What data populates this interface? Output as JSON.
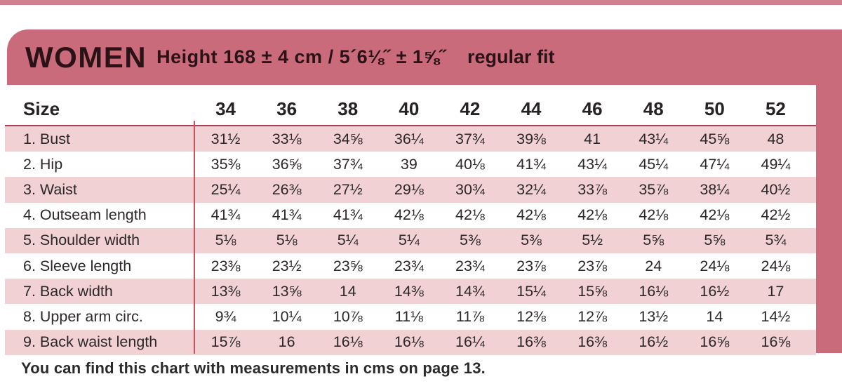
{
  "header": {
    "title": "WOMEN",
    "subtitle": "Height 168 ±  4 cm /  5´6⅛˝ ± 1⅝˝",
    "fit": "regular fit"
  },
  "table": {
    "size_label": "Size",
    "sizes": [
      "34",
      "36",
      "38",
      "40",
      "42",
      "44",
      "46",
      "48",
      "50",
      "52"
    ],
    "rows": [
      {
        "label": "1. Bust",
        "values": [
          "31½",
          "33⅛",
          "34⅝",
          "36¼",
          "37¾",
          "39⅜",
          "41",
          "43¼",
          "45⅝",
          "48"
        ]
      },
      {
        "label": "2. Hip",
        "values": [
          "35⅜",
          "36⅝",
          "37¾",
          "39",
          "40⅛",
          "41¾",
          "43¼",
          "45¼",
          "47¼",
          "49¼"
        ]
      },
      {
        "label": "3. Waist",
        "values": [
          "25¼",
          "26⅜",
          "27½",
          "29⅛",
          "30¾",
          "32¼",
          "33⅞",
          "35⅞",
          "38¼",
          "40½"
        ]
      },
      {
        "label": "4. Outseam length",
        "values": [
          "41¾",
          "41¾",
          "41¾",
          "42⅛",
          "42⅛",
          "42⅛",
          "42⅛",
          "42⅛",
          "42⅛",
          "42½"
        ]
      },
      {
        "label": "5. Shoulder width",
        "values": [
          "5⅛",
          "5⅛",
          "5¼",
          "5¼",
          "5⅜",
          "5⅜",
          "5½",
          "5⅝",
          "5⅝",
          "5¾"
        ]
      },
      {
        "label": "6. Sleeve length",
        "values": [
          "23⅜",
          "23½",
          "23⅝",
          "23¾",
          "23¾",
          "23⅞",
          "23⅞",
          "24",
          "24⅛",
          "24⅛"
        ]
      },
      {
        "label": "7. Back width",
        "values": [
          "13⅜",
          "13⅝",
          "14",
          "14⅜",
          "14¾",
          "15¼",
          "15⅝",
          "16⅛",
          "16½",
          "17"
        ]
      },
      {
        "label": "8. Upper arm circ.",
        "values": [
          "9¾",
          "10¼",
          "10⅞",
          "11⅛",
          "11⅞",
          "12⅜",
          "12⅞",
          "13½",
          "14",
          "14½"
        ]
      },
      {
        "label": "9. Back waist length",
        "values": [
          "15⅞",
          "16",
          "16⅛",
          "16⅛",
          "16¼",
          "16⅜",
          "16⅜",
          "16½",
          "16⅝",
          "16⅝"
        ]
      }
    ]
  },
  "footer": {
    "note": "You can find this chart with measurements in cms on page 13."
  },
  "colors": {
    "rose": "#c96b7a",
    "rose-top": "#d2808d",
    "stripe": "#f1d1d3",
    "rule": "#ad3f52",
    "vline": "#c4525f",
    "ink": "#2c2728",
    "ink-dark": "#2b1217"
  }
}
